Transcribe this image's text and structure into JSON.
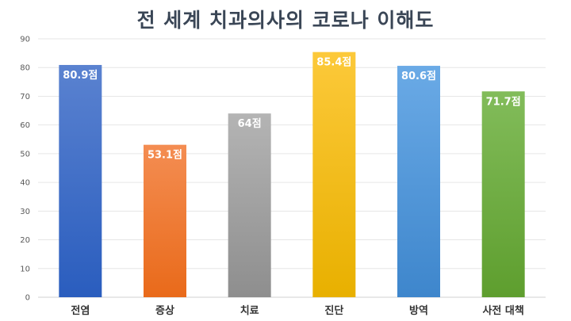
{
  "chart_data": {
    "type": "bar",
    "title": "전 세계 치과의사의 코로나 이해도",
    "xlabel": "",
    "ylabel": "",
    "categories": [
      "전염",
      "증상",
      "치료",
      "진단",
      "방역",
      "사전 대책"
    ],
    "values": [
      80.9,
      53.1,
      64,
      85.4,
      80.6,
      71.7
    ],
    "data_labels": [
      "80.9점",
      "53.1점",
      "64점",
      "85.4점",
      "80.6점",
      "71.7점"
    ],
    "ylim": [
      0,
      90
    ],
    "yticks": [
      0,
      10,
      20,
      30,
      40,
      50,
      60,
      70,
      80,
      90
    ],
    "grid": true,
    "legend": "none",
    "bar_colors": [
      [
        "#5a82d0",
        "#2a5dbe"
      ],
      [
        "#f48d52",
        "#e96a1a"
      ],
      [
        "#b4b4b4",
        "#8e8e8e"
      ],
      [
        "#fcc93a",
        "#e8b000"
      ],
      [
        "#6aaae6",
        "#3e86cc"
      ],
      [
        "#82bc5a",
        "#5e9e2e"
      ]
    ]
  }
}
